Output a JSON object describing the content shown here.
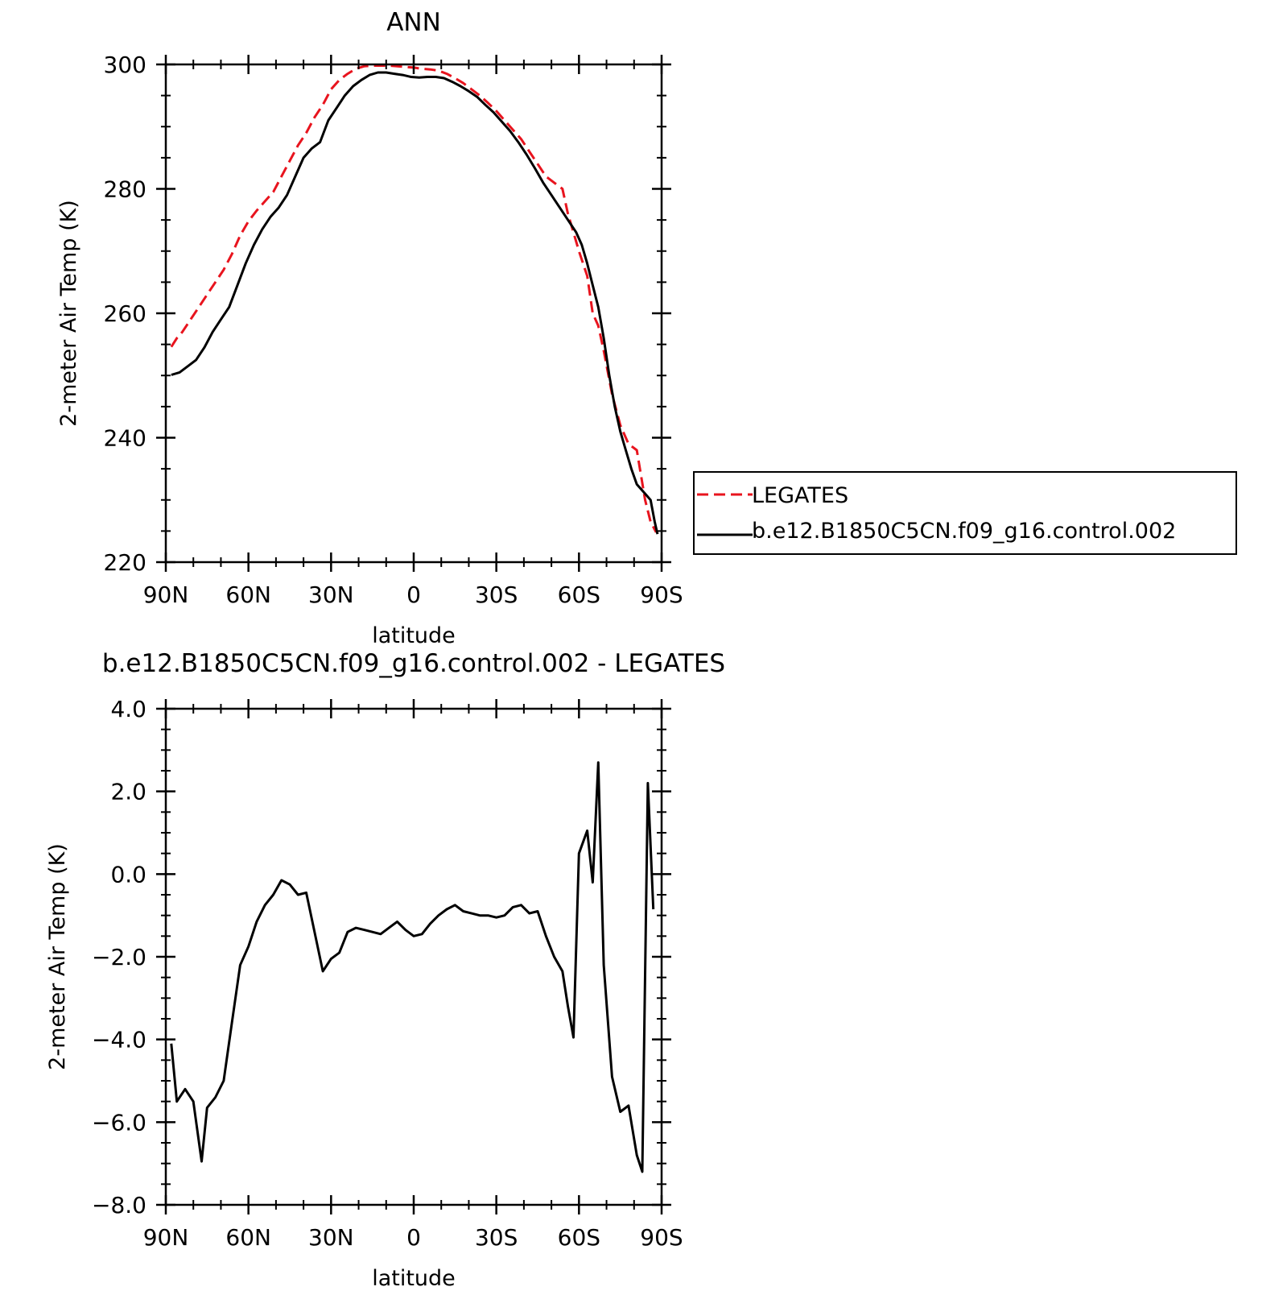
{
  "chart_data": [
    {
      "type": "line",
      "title": "ANN",
      "xlabel": "latitude",
      "ylabel": "2-meter Air Temp (K)",
      "xlim": [
        90,
        -90
      ],
      "ylim": [
        220,
        300
      ],
      "x_ticks": [
        90,
        60,
        30,
        0,
        -30,
        -60,
        -90
      ],
      "x_tick_labels": [
        "90N",
        "60N",
        "30N",
        "0",
        "30S",
        "60S",
        "90S"
      ],
      "y_ticks": [
        220,
        240,
        260,
        280,
        300
      ],
      "y_tick_labels": [
        "220",
        "240",
        "260",
        "280",
        "300"
      ],
      "grid": false,
      "legend_position": "outside-right",
      "series": [
        {
          "name": "LEGATES",
          "color": "#e8141e",
          "dash": "dashed",
          "points": [
            [
              88,
              254.6
            ],
            [
              86,
              256
            ],
            [
              84,
              257
            ],
            [
              81,
              259
            ],
            [
              78,
              261
            ],
            [
              75,
              263
            ],
            [
              72,
              265
            ],
            [
              69,
              267
            ],
            [
              66,
              269.5
            ],
            [
              63,
              272.5
            ],
            [
              60,
              274.8
            ],
            [
              57,
              276.5
            ],
            [
              54,
              278
            ],
            [
              51,
              279.5
            ],
            [
              48,
              282
            ],
            [
              45,
              284.5
            ],
            [
              42,
              287
            ],
            [
              39,
              289
            ],
            [
              36,
              291.5
            ],
            [
              33,
              293.5
            ],
            [
              30,
              296
            ],
            [
              27,
              297.5
            ],
            [
              24,
              298.5
            ],
            [
              21,
              299.3
            ],
            [
              18,
              299.7
            ],
            [
              15,
              299.8
            ],
            [
              12,
              299.8
            ],
            [
              9,
              299.8
            ],
            [
              6,
              299.7
            ],
            [
              3,
              299.6
            ],
            [
              0,
              299.5
            ],
            [
              -3,
              299.3
            ],
            [
              -6,
              299.2
            ],
            [
              -9,
              299
            ],
            [
              -12,
              298.5
            ],
            [
              -15,
              297.8
            ],
            [
              -18,
              297
            ],
            [
              -21,
              296
            ],
            [
              -24,
              295
            ],
            [
              -27,
              293.8
            ],
            [
              -30,
              292.5
            ],
            [
              -33,
              291
            ],
            [
              -36,
              289.5
            ],
            [
              -39,
              288
            ],
            [
              -42,
              286
            ],
            [
              -45,
              284
            ],
            [
              -48,
              282
            ],
            [
              -51,
              281
            ],
            [
              -54,
              280
            ],
            [
              -56,
              276
            ],
            [
              -58,
              273
            ],
            [
              -60,
              270
            ],
            [
              -63,
              266
            ],
            [
              -65,
              260
            ],
            [
              -67,
              258
            ],
            [
              -69,
              254
            ],
            [
              -72,
              247
            ],
            [
              -75,
              242
            ],
            [
              -78,
              239
            ],
            [
              -81,
              238
            ],
            [
              -84,
              230
            ],
            [
              -86,
              226.5
            ],
            [
              -88,
              224.8
            ]
          ]
        },
        {
          "name": "b.e12.B1850C5CN.f09_g16.control.002",
          "color": "#000000",
          "dash": "solid",
          "points": [
            [
              88,
              250.1
            ],
            [
              85,
              250.5
            ],
            [
              82,
              251.5
            ],
            [
              79,
              252.5
            ],
            [
              76,
              254.5
            ],
            [
              73,
              257
            ],
            [
              70,
              259
            ],
            [
              67,
              261
            ],
            [
              64,
              264.5
            ],
            [
              61,
              268
            ],
            [
              58,
              271
            ],
            [
              55,
              273.5
            ],
            [
              52,
              275.5
            ],
            [
              49,
              277
            ],
            [
              46,
              279
            ],
            [
              43,
              282
            ],
            [
              40,
              285
            ],
            [
              37,
              286.5
            ],
            [
              34,
              287.5
            ],
            [
              31,
              291
            ],
            [
              28,
              293
            ],
            [
              25,
              295
            ],
            [
              22,
              296.5
            ],
            [
              19,
              297.5
            ],
            [
              16,
              298.3
            ],
            [
              13,
              298.7
            ],
            [
              10,
              298.7
            ],
            [
              7,
              298.5
            ],
            [
              4,
              298.3
            ],
            [
              1,
              298
            ],
            [
              -2,
              297.9
            ],
            [
              -5,
              298
            ],
            [
              -8,
              298
            ],
            [
              -11,
              297.8
            ],
            [
              -14,
              297.2
            ],
            [
              -17,
              296.5
            ],
            [
              -20,
              295.7
            ],
            [
              -23,
              294.8
            ],
            [
              -26,
              293.5
            ],
            [
              -29,
              292.3
            ],
            [
              -32,
              290.8
            ],
            [
              -35,
              289.3
            ],
            [
              -38,
              287.5
            ],
            [
              -41,
              285.5
            ],
            [
              -44,
              283.3
            ],
            [
              -47,
              281
            ],
            [
              -50,
              279
            ],
            [
              -53,
              277
            ],
            [
              -56,
              275
            ],
            [
              -59,
              273
            ],
            [
              -61,
              271
            ],
            [
              -63,
              268
            ],
            [
              -65,
              264.5
            ],
            [
              -67,
              261
            ],
            [
              -69,
              256
            ],
            [
              -71,
              250
            ],
            [
              -73,
              245
            ],
            [
              -75,
              241
            ],
            [
              -77,
              238
            ],
            [
              -79,
              235
            ],
            [
              -81,
              232.5
            ],
            [
              -84,
              231
            ],
            [
              -86,
              230
            ],
            [
              -87.5,
              226.5
            ],
            [
              -88.5,
              224.5
            ]
          ]
        }
      ]
    },
    {
      "type": "line",
      "title": "b.e12.B1850C5CN.f09_g16.control.002 - LEGATES",
      "xlabel": "latitude",
      "ylabel": "2-meter Air Temp (K)",
      "xlim": [
        90,
        -90
      ],
      "ylim": [
        -8,
        4
      ],
      "x_ticks": [
        90,
        60,
        30,
        0,
        -30,
        -60,
        -90
      ],
      "x_tick_labels": [
        "90N",
        "60N",
        "30N",
        "0",
        "30S",
        "60S",
        "90S"
      ],
      "y_ticks": [
        -8,
        -6,
        -4,
        -2,
        0,
        2,
        4
      ],
      "y_tick_labels": [
        "-8.0",
        "-6.0",
        "-4.0",
        "-2.0",
        "0.0",
        "2.0",
        "4.0"
      ],
      "grid": false,
      "series": [
        {
          "color": "#000000",
          "dash": "solid",
          "points": [
            [
              88,
              -4.1
            ],
            [
              86,
              -5.5
            ],
            [
              83,
              -5.2
            ],
            [
              80,
              -5.5
            ],
            [
              77,
              -6.95
            ],
            [
              75,
              -5.65
            ],
            [
              72,
              -5.4
            ],
            [
              69,
              -5.0
            ],
            [
              66,
              -3.6
            ],
            [
              63,
              -2.2
            ],
            [
              60,
              -1.75
            ],
            [
              57,
              -1.15
            ],
            [
              54,
              -0.75
            ],
            [
              51,
              -0.5
            ],
            [
              48,
              -0.15
            ],
            [
              45,
              -0.25
            ],
            [
              42,
              -0.5
            ],
            [
              39,
              -0.45
            ],
            [
              36,
              -1.4
            ],
            [
              33,
              -2.35
            ],
            [
              30,
              -2.05
            ],
            [
              27,
              -1.9
            ],
            [
              24,
              -1.4
            ],
            [
              21,
              -1.3
            ],
            [
              18,
              -1.35
            ],
            [
              15,
              -1.4
            ],
            [
              12,
              -1.45
            ],
            [
              9,
              -1.3
            ],
            [
              6,
              -1.15
            ],
            [
              3,
              -1.35
            ],
            [
              0,
              -1.5
            ],
            [
              -3,
              -1.45
            ],
            [
              -6,
              -1.2
            ],
            [
              -9,
              -1.0
            ],
            [
              -12,
              -0.85
            ],
            [
              -15,
              -0.75
            ],
            [
              -18,
              -0.9
            ],
            [
              -21,
              -0.95
            ],
            [
              -24,
              -1.0
            ],
            [
              -27,
              -1.0
            ],
            [
              -30,
              -1.05
            ],
            [
              -33,
              -1.0
            ],
            [
              -36,
              -0.8
            ],
            [
              -39,
              -0.75
            ],
            [
              -42,
              -0.95
            ],
            [
              -45,
              -0.9
            ],
            [
              -48,
              -1.5
            ],
            [
              -51,
              -2.0
            ],
            [
              -54,
              -2.35
            ],
            [
              -56,
              -3.2
            ],
            [
              -58,
              -3.95
            ],
            [
              -60,
              0.5
            ],
            [
              -63,
              1.05
            ],
            [
              -65,
              -0.2
            ],
            [
              -67,
              2.7
            ],
            [
              -69,
              -2.2
            ],
            [
              -72,
              -4.9
            ],
            [
              -75,
              -5.75
            ],
            [
              -78,
              -5.6
            ],
            [
              -81,
              -6.8
            ],
            [
              -83,
              -7.2
            ],
            [
              -85,
              2.2
            ],
            [
              -87,
              -0.85
            ]
          ]
        }
      ]
    }
  ]
}
